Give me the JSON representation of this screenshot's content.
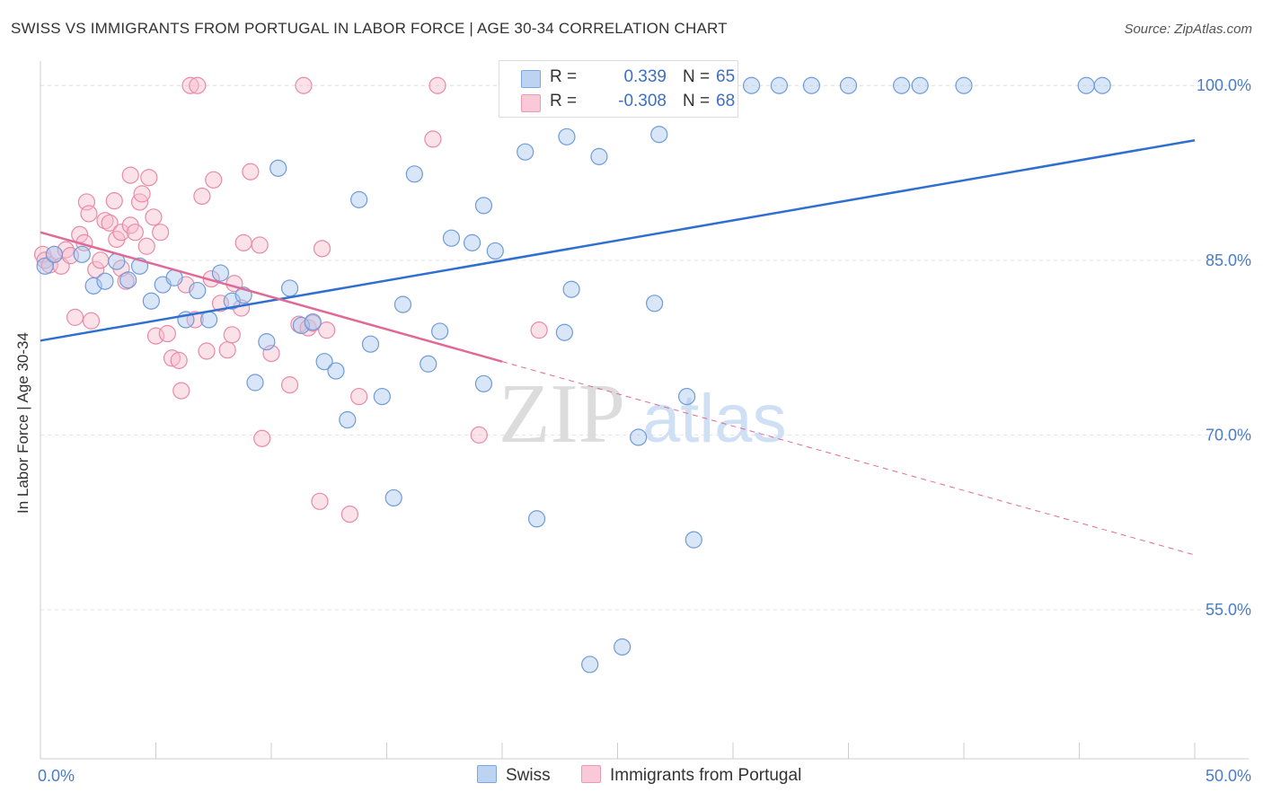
{
  "title": "SWISS VS IMMIGRANTS FROM PORTUGAL IN LABOR FORCE | AGE 30-34 CORRELATION CHART",
  "source": "Source: ZipAtlas.com",
  "watermark_zip": "ZIP",
  "watermark_atlas": "atlas",
  "colors": {
    "swiss_fill": "#a9c7ef",
    "swiss_stroke": "#6f9bd8",
    "swiss_line": "#2f6fcf",
    "portugal_fill": "#f7bccd",
    "portugal_stroke": "#e88aa8",
    "portugal_line": "#e06a95",
    "tick_text": "#4a7cc7"
  },
  "legend": {
    "swiss": {
      "r_label": "R =",
      "r_value": "0.339",
      "n_label": "N =",
      "n_value": "65"
    },
    "portugal": {
      "r_label": "R =",
      "r_value": "-0.308",
      "n_label": "N =",
      "n_value": "68"
    }
  },
  "bottom_legend": {
    "swiss": "Swiss",
    "portugal": "Immigrants from Portugal"
  },
  "chart_data": {
    "type": "scatter",
    "title": "SWISS VS IMMIGRANTS FROM PORTUGAL IN LABOR FORCE | AGE 30-34 CORRELATION CHART",
    "xlabel": "",
    "ylabel": "In Labor Force | Age 30-34",
    "xlim": [
      0,
      50
    ],
    "ylim": [
      42.2,
      102.1
    ],
    "x_tick_labels": [
      "0.0%",
      "50.0%"
    ],
    "y_ticks": [
      55,
      70,
      85,
      100
    ],
    "y_tick_labels": [
      "55.0%",
      "70.0%",
      "85.0%",
      "100.0%"
    ],
    "grid": true,
    "legend_position": "top-center",
    "series": [
      {
        "name": "Swiss",
        "trend": {
          "x": [
            0,
            50
          ],
          "y": [
            78.1,
            95.3
          ]
        },
        "points": [
          [
            0.2,
            84.5
          ],
          [
            0.6,
            85.5
          ],
          [
            1.8,
            85.5
          ],
          [
            2.3,
            82.8
          ],
          [
            2.8,
            83.2
          ],
          [
            3.3,
            84.9
          ],
          [
            3.8,
            83.3
          ],
          [
            4.3,
            84.5
          ],
          [
            4.8,
            81.5
          ],
          [
            5.3,
            82.9
          ],
          [
            5.8,
            83.5
          ],
          [
            6.3,
            79.9
          ],
          [
            6.8,
            82.4
          ],
          [
            7.3,
            79.9
          ],
          [
            7.8,
            83.9
          ],
          [
            8.3,
            81.5
          ],
          [
            8.8,
            82.0
          ],
          [
            9.3,
            74.5
          ],
          [
            9.8,
            78.0
          ],
          [
            10.3,
            92.9
          ],
          [
            10.8,
            82.6
          ],
          [
            11.3,
            79.4
          ],
          [
            11.8,
            79.7
          ],
          [
            12.3,
            76.3
          ],
          [
            12.8,
            75.5
          ],
          [
            13.3,
            71.3
          ],
          [
            13.8,
            90.2
          ],
          [
            14.3,
            77.8
          ],
          [
            14.8,
            73.3
          ],
          [
            15.3,
            64.6
          ],
          [
            15.7,
            81.2
          ],
          [
            16.2,
            92.4
          ],
          [
            16.8,
            76.1
          ],
          [
            17.3,
            78.9
          ],
          [
            17.8,
            86.9
          ],
          [
            18.7,
            86.5
          ],
          [
            19.2,
            89.7
          ],
          [
            19.2,
            74.4
          ],
          [
            19.7,
            85.8
          ],
          [
            21.0,
            94.3
          ],
          [
            21.5,
            62.8
          ],
          [
            22.7,
            78.8
          ],
          [
            22.8,
            95.6
          ],
          [
            23.0,
            82.5
          ],
          [
            23.2,
            100.0
          ],
          [
            23.8,
            50.3
          ],
          [
            24.2,
            93.9
          ],
          [
            25.2,
            51.8
          ],
          [
            25.5,
            100.0
          ],
          [
            25.9,
            69.8
          ],
          [
            26.0,
            100.0
          ],
          [
            26.6,
            81.3
          ],
          [
            26.8,
            95.8
          ],
          [
            28.0,
            73.3
          ],
          [
            28.3,
            61.0
          ],
          [
            29.0,
            100.0
          ],
          [
            30.8,
            100.0
          ],
          [
            32.0,
            100.0
          ],
          [
            33.4,
            100.0
          ],
          [
            35.0,
            100.0
          ],
          [
            37.3,
            100.0
          ],
          [
            38.1,
            100.0
          ],
          [
            40.0,
            100.0
          ],
          [
            45.3,
            100.0
          ],
          [
            46.0,
            100.0
          ]
        ]
      },
      {
        "name": "Immigrants from Portugal",
        "trend": {
          "x": [
            0,
            20
          ],
          "y": [
            87.4,
            76.3
          ]
        },
        "trend_dashed": {
          "x": [
            20,
            50
          ],
          "y": [
            76.3,
            59.7
          ]
        },
        "points": [
          [
            0.1,
            85.5
          ],
          [
            0.2,
            85.0
          ],
          [
            0.4,
            84.6
          ],
          [
            0.6,
            85.5
          ],
          [
            0.9,
            84.5
          ],
          [
            1.1,
            85.9
          ],
          [
            1.3,
            85.4
          ],
          [
            1.5,
            80.1
          ],
          [
            1.7,
            87.2
          ],
          [
            1.9,
            86.5
          ],
          [
            2.0,
            90.0
          ],
          [
            2.1,
            89.0
          ],
          [
            2.2,
            79.8
          ],
          [
            2.4,
            84.2
          ],
          [
            2.6,
            85.0
          ],
          [
            2.8,
            88.4
          ],
          [
            3.0,
            88.2
          ],
          [
            3.2,
            90.1
          ],
          [
            3.3,
            86.8
          ],
          [
            3.5,
            84.3
          ],
          [
            3.5,
            87.4
          ],
          [
            3.7,
            83.2
          ],
          [
            3.9,
            88.0
          ],
          [
            3.9,
            92.3
          ],
          [
            4.1,
            87.4
          ],
          [
            4.3,
            90.0
          ],
          [
            4.4,
            90.7
          ],
          [
            4.6,
            86.2
          ],
          [
            4.7,
            92.1
          ],
          [
            4.9,
            88.7
          ],
          [
            5.0,
            78.5
          ],
          [
            5.2,
            87.4
          ],
          [
            5.5,
            78.7
          ],
          [
            5.7,
            76.6
          ],
          [
            6.0,
            76.4
          ],
          [
            6.1,
            73.8
          ],
          [
            6.3,
            82.9
          ],
          [
            6.5,
            100.0
          ],
          [
            6.7,
            79.9
          ],
          [
            6.8,
            100.0
          ],
          [
            7.0,
            90.5
          ],
          [
            7.2,
            77.2
          ],
          [
            7.4,
            83.4
          ],
          [
            7.5,
            91.9
          ],
          [
            7.8,
            81.3
          ],
          [
            8.1,
            77.3
          ],
          [
            8.3,
            78.6
          ],
          [
            8.4,
            83.0
          ],
          [
            8.7,
            80.9
          ],
          [
            8.8,
            86.5
          ],
          [
            9.1,
            92.6
          ],
          [
            9.5,
            86.3
          ],
          [
            9.6,
            69.7
          ],
          [
            10.0,
            77.0
          ],
          [
            10.8,
            74.3
          ],
          [
            11.2,
            79.5
          ],
          [
            11.4,
            100.0
          ],
          [
            11.6,
            79.2
          ],
          [
            11.8,
            79.6
          ],
          [
            12.1,
            64.3
          ],
          [
            12.2,
            86.0
          ],
          [
            12.4,
            79.0
          ],
          [
            13.4,
            63.2
          ],
          [
            13.8,
            73.3
          ],
          [
            17.0,
            95.4
          ],
          [
            17.2,
            100.0
          ],
          [
            19.0,
            70.0
          ],
          [
            21.6,
            79.0
          ]
        ]
      }
    ]
  }
}
